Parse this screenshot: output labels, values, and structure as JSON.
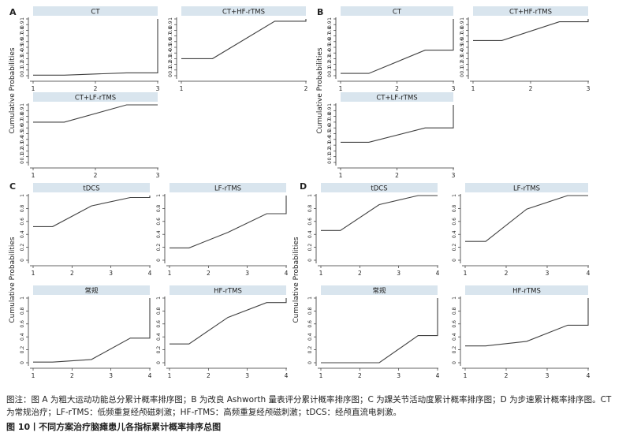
{
  "figure": {
    "ylabel": "Cumulative Probabilities",
    "colors": {
      "line": "#404040",
      "strip": "#d9e5ee",
      "axis": "#333333",
      "text": "#222222"
    },
    "panels": [
      {
        "letter": "A",
        "ylim": [
          0,
          1
        ],
        "yticks": [
          0,
          0.1,
          0.2,
          0.3,
          0.4,
          0.5,
          0.6,
          0.7,
          0.8,
          0.9,
          1
        ],
        "charts": [
          {
            "title": "CT",
            "xticks": [
              "1",
              "2",
              "3"
            ]
          },
          {
            "title": "CT+HF-rTMS",
            "xticks": [
              "1",
              "2"
            ]
          },
          {
            "title": "CT+LF-rTMS",
            "xticks": [
              "1",
              "2",
              "3"
            ]
          }
        ]
      },
      {
        "letter": "B",
        "ylim": [
          0,
          1
        ],
        "yticks": [
          0,
          0.1,
          0.2,
          0.3,
          0.4,
          0.5,
          0.6,
          0.7,
          0.8,
          0.9,
          1
        ],
        "charts": [
          {
            "title": "CT",
            "xticks": [
              "1",
              "2",
              "3"
            ]
          },
          {
            "title": "CT+HF-rTMS",
            "xticks": [
              "1",
              "2",
              "3"
            ]
          },
          {
            "title": "CT+LF-rTMS",
            "xticks": [
              "1",
              "2",
              "3"
            ]
          }
        ]
      },
      {
        "letter": "C",
        "ylim": [
          0,
          1
        ],
        "yticks": [
          0,
          0.2,
          0.4,
          0.6,
          0.8,
          1
        ],
        "charts": [
          {
            "title": "tDCS",
            "xticks": [
              "1",
              "2",
              "3",
              "4"
            ]
          },
          {
            "title": "LF-rTMS",
            "xticks": [
              "1",
              "2",
              "3",
              "4"
            ]
          },
          {
            "title": "常规",
            "xticks": [
              "1",
              "2",
              "3",
              "4"
            ]
          },
          {
            "title": "HF-rTMS",
            "xticks": [
              "1",
              "2",
              "3",
              "4"
            ]
          }
        ]
      },
      {
        "letter": "D",
        "ylim": [
          0,
          1
        ],
        "yticks": [
          0,
          0.2,
          0.4,
          0.6,
          0.8,
          1
        ],
        "charts": [
          {
            "title": "tDCS",
            "xticks": [
              "1",
              "2",
              "3",
              "4"
            ]
          },
          {
            "title": "LF-rTMS",
            "xticks": [
              "1",
              "2",
              "3",
              "4"
            ]
          },
          {
            "title": "常规",
            "xticks": [
              "1",
              "2",
              "3",
              "4"
            ]
          },
          {
            "title": "HF-rTMS",
            "xticks": [
              "1",
              "2",
              "3",
              "4"
            ]
          }
        ]
      }
    ]
  },
  "chart_data": [
    {
      "type": "line",
      "panel": "A",
      "title": "CT",
      "xlim": [
        1,
        3
      ],
      "ylim": [
        0,
        1
      ],
      "x": [
        1,
        1.5,
        2.5,
        3,
        3
      ],
      "y": [
        0.01,
        0.01,
        0.05,
        0.05,
        1.0
      ]
    },
    {
      "type": "line",
      "panel": "A",
      "title": "CT+HF-rTMS",
      "xlim": [
        1,
        2
      ],
      "ylim": [
        0,
        1
      ],
      "x": [
        1,
        1.25,
        1.75,
        2,
        2
      ],
      "y": [
        0.3,
        0.3,
        0.96,
        0.96,
        1.0
      ]
    },
    {
      "type": "line",
      "panel": "A",
      "title": "CT+LF-rTMS",
      "xlim": [
        1,
        3
      ],
      "ylim": [
        0,
        1
      ],
      "x": [
        1,
        1.5,
        2.5,
        3
      ],
      "y": [
        0.7,
        0.7,
        1.0,
        1.0
      ]
    },
    {
      "type": "line",
      "panel": "B",
      "title": "CT",
      "xlim": [
        1,
        3
      ],
      "ylim": [
        0,
        1
      ],
      "x": [
        1,
        1.5,
        2.5,
        3,
        3
      ],
      "y": [
        0.04,
        0.04,
        0.45,
        0.45,
        1.0
      ]
    },
    {
      "type": "line",
      "panel": "B",
      "title": "CT+HF-rTMS",
      "xlim": [
        1,
        3
      ],
      "ylim": [
        0,
        1
      ],
      "x": [
        1,
        1.5,
        2.5,
        3,
        3
      ],
      "y": [
        0.62,
        0.62,
        0.95,
        0.95,
        1.0
      ]
    },
    {
      "type": "line",
      "panel": "B",
      "title": "CT+LF-rTMS",
      "xlim": [
        1,
        3
      ],
      "ylim": [
        0,
        1
      ],
      "x": [
        1,
        1.5,
        2.5,
        3,
        3
      ],
      "y": [
        0.35,
        0.35,
        0.6,
        0.6,
        1.0
      ]
    },
    {
      "type": "line",
      "panel": "C",
      "title": "tDCS",
      "xlim": [
        1,
        4
      ],
      "ylim": [
        0,
        1
      ],
      "x": [
        1,
        1.5,
        2.5,
        3.5,
        4,
        4
      ],
      "y": [
        0.52,
        0.52,
        0.84,
        0.97,
        0.97,
        1.0
      ]
    },
    {
      "type": "line",
      "panel": "C",
      "title": "LF-rTMS",
      "xlim": [
        1,
        4
      ],
      "ylim": [
        0,
        1
      ],
      "x": [
        1,
        1.5,
        2.5,
        3.5,
        4,
        4
      ],
      "y": [
        0.19,
        0.19,
        0.43,
        0.72,
        0.72,
        1.0
      ]
    },
    {
      "type": "line",
      "panel": "C",
      "title": "常规",
      "xlim": [
        1,
        4
      ],
      "ylim": [
        0,
        1
      ],
      "x": [
        1,
        1.5,
        2.5,
        3.5,
        4,
        4
      ],
      "y": [
        0.01,
        0.01,
        0.05,
        0.38,
        0.38,
        1.0
      ]
    },
    {
      "type": "line",
      "panel": "C",
      "title": "HF-rTMS",
      "xlim": [
        1,
        4
      ],
      "ylim": [
        0,
        1
      ],
      "x": [
        1,
        1.5,
        2.5,
        3.5,
        4,
        4
      ],
      "y": [
        0.29,
        0.29,
        0.7,
        0.93,
        0.93,
        1.0
      ]
    },
    {
      "type": "line",
      "panel": "D",
      "title": "tDCS",
      "xlim": [
        1,
        4
      ],
      "ylim": [
        0,
        1
      ],
      "x": [
        1,
        1.5,
        2.5,
        3.5,
        4
      ],
      "y": [
        0.46,
        0.46,
        0.86,
        1.0,
        1.0
      ]
    },
    {
      "type": "line",
      "panel": "D",
      "title": "LF-rTMS",
      "xlim": [
        1,
        4
      ],
      "ylim": [
        0,
        1
      ],
      "x": [
        1,
        1.5,
        2.5,
        3.5,
        4
      ],
      "y": [
        0.29,
        0.29,
        0.79,
        1.0,
        1.0
      ]
    },
    {
      "type": "line",
      "panel": "D",
      "title": "常规",
      "xlim": [
        1,
        4
      ],
      "ylim": [
        0,
        1
      ],
      "x": [
        1,
        1.5,
        2.5,
        3.5,
        4,
        4
      ],
      "y": [
        0.0,
        0.0,
        0.0,
        0.42,
        0.42,
        1.0
      ]
    },
    {
      "type": "line",
      "panel": "D",
      "title": "HF-rTMS",
      "xlim": [
        1,
        4
      ],
      "ylim": [
        0,
        1
      ],
      "x": [
        1,
        1.5,
        2.5,
        3.5,
        4,
        4
      ],
      "y": [
        0.26,
        0.26,
        0.33,
        0.58,
        0.58,
        1.0
      ]
    }
  ],
  "caption": {
    "note": "图注：图 A 为粗大运动功能总分累计概率排序图；B 为改良 Ashworth 量表评分累计概率排序图；C 为踝关节活动度累计概率排序图；D 为步速累计概率排序图。CT 为常规治疗；LF-rTMS：低频重复经颅磁刺激；HF-rTMS：高频重复经颅磁刺激；tDCS：经颅直流电刺激。",
    "title": "图 10丨不同方案治疗脑瘫患儿各指标累计概率排序总图"
  }
}
